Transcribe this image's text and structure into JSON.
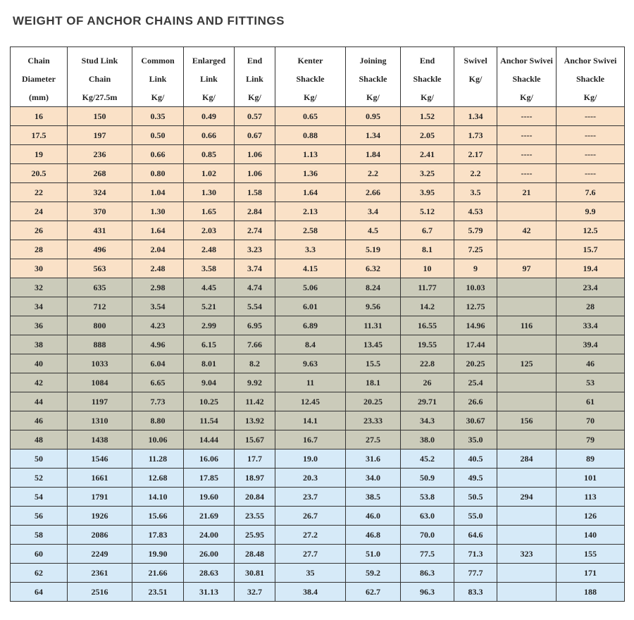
{
  "page": {
    "title": "WEIGHT OF ANCHOR CHAINS AND FITTINGS"
  },
  "table": {
    "columns": [
      {
        "id": "chain-diameter",
        "lines": [
          "Chain",
          "Diameter",
          "(mm)"
        ]
      },
      {
        "id": "stud-link-chain",
        "lines": [
          "Stud Link",
          "Chain",
          "Kg/27.5m"
        ]
      },
      {
        "id": "common-link",
        "lines": [
          "Common",
          "Link",
          "Kg/"
        ]
      },
      {
        "id": "enlarged-link",
        "lines": [
          "Enlarged",
          "Link",
          "Kg/"
        ]
      },
      {
        "id": "end-link",
        "lines": [
          "End",
          "Link",
          "Kg/"
        ]
      },
      {
        "id": "kenter-shackle",
        "lines": [
          "Kenter",
          "Shackle",
          "Kg/"
        ]
      },
      {
        "id": "joining-shackle",
        "lines": [
          "Joining",
          "Shackle",
          "Kg/"
        ]
      },
      {
        "id": "end-shackle",
        "lines": [
          "End",
          "Shackle",
          "Kg/"
        ]
      },
      {
        "id": "swivel",
        "lines": [
          "Swivel",
          "Kg/"
        ]
      },
      {
        "id": "anchor-swivei-shackle-1",
        "lines": [
          "Anchor Swivei",
          "Shackle",
          "Kg/"
        ]
      },
      {
        "id": "anchor-swivei-shackle-2",
        "lines": [
          "Anchor Swivei",
          "Shackle",
          "Kg/"
        ]
      }
    ],
    "band_colors": {
      "peach": "#FAE1C7",
      "gray": "#CBCBBA",
      "blue": "#D6EAF8"
    },
    "rows": [
      {
        "band": "peach",
        "cells": [
          "16",
          "150",
          "0.35",
          "0.49",
          "0.57",
          "0.65",
          "0.95",
          "1.52",
          "1.34",
          "----",
          "----"
        ]
      },
      {
        "band": "peach",
        "cells": [
          "17.5",
          "197",
          "0.50",
          "0.66",
          "0.67",
          "0.88",
          "1.34",
          "2.05",
          "1.73",
          "----",
          "----"
        ]
      },
      {
        "band": "peach",
        "cells": [
          "19",
          "236",
          "0.66",
          "0.85",
          "1.06",
          "1.13",
          "1.84",
          "2.41",
          "2.17",
          "----",
          "----"
        ]
      },
      {
        "band": "peach",
        "cells": [
          "20.5",
          "268",
          "0.80",
          "1.02",
          "1.06",
          "1.36",
          "2.2",
          "3.25",
          "2.2",
          "----",
          "----"
        ]
      },
      {
        "band": "peach",
        "cells": [
          "22",
          "324",
          "1.04",
          "1.30",
          "1.58",
          "1.64",
          "2.66",
          "3.95",
          "3.5",
          "21",
          "7.6"
        ]
      },
      {
        "band": "peach",
        "cells": [
          "24",
          "370",
          "1.30",
          "1.65",
          "2.84",
          "2.13",
          "3.4",
          "5.12",
          "4.53",
          "",
          "9.9"
        ]
      },
      {
        "band": "peach",
        "cells": [
          "26",
          "431",
          "1.64",
          "2.03",
          "2.74",
          "2.58",
          "4.5",
          "6.7",
          "5.79",
          "42",
          "12.5"
        ]
      },
      {
        "band": "peach",
        "cells": [
          "28",
          "496",
          "2.04",
          "2.48",
          "3.23",
          "3.3",
          "5.19",
          "8.1",
          "7.25",
          "",
          "15.7"
        ]
      },
      {
        "band": "peach",
        "cells": [
          "30",
          "563",
          "2.48",
          "3.58",
          "3.74",
          "4.15",
          "6.32",
          "10",
          "9",
          "97",
          "19.4"
        ]
      },
      {
        "band": "gray",
        "cells": [
          "32",
          "635",
          "2.98",
          "4.45",
          "4.74",
          "5.06",
          "8.24",
          "11.77",
          "10.03",
          "",
          "23.4"
        ]
      },
      {
        "band": "gray",
        "cells": [
          "34",
          "712",
          "3.54",
          "5.21",
          "5.54",
          "6.01",
          "9.56",
          "14.2",
          "12.75",
          "",
          "28"
        ]
      },
      {
        "band": "gray",
        "cells": [
          "36",
          "800",
          "4.23",
          "2.99",
          "6.95",
          "6.89",
          "11.31",
          "16.55",
          "14.96",
          "116",
          "33.4"
        ]
      },
      {
        "band": "gray",
        "cells": [
          "38",
          "888",
          "4.96",
          "6.15",
          "7.66",
          "8.4",
          "13.45",
          "19.55",
          "17.44",
          "",
          "39.4"
        ]
      },
      {
        "band": "gray",
        "cells": [
          "40",
          "1033",
          "6.04",
          "8.01",
          "8.2",
          "9.63",
          "15.5",
          "22.8",
          "20.25",
          "125",
          "46"
        ]
      },
      {
        "band": "gray",
        "cells": [
          "42",
          "1084",
          "6.65",
          "9.04",
          "9.92",
          "11",
          "18.1",
          "26",
          "25.4",
          "",
          "53"
        ]
      },
      {
        "band": "gray",
        "cells": [
          "44",
          "1197",
          "7.73",
          "10.25",
          "11.42",
          "12.45",
          "20.25",
          "29.71",
          "26.6",
          "",
          "61"
        ]
      },
      {
        "band": "gray",
        "cells": [
          "46",
          "1310",
          "8.80",
          "11.54",
          "13.92",
          "14.1",
          "23.33",
          "34.3",
          "30.67",
          "156",
          "70"
        ]
      },
      {
        "band": "gray",
        "cells": [
          "48",
          "1438",
          "10.06",
          "14.44",
          "15.67",
          "16.7",
          "27.5",
          "38.0",
          "35.0",
          "",
          "79"
        ]
      },
      {
        "band": "blue",
        "cells": [
          "50",
          "1546",
          "11.28",
          "16.06",
          "17.7",
          "19.0",
          "31.6",
          "45.2",
          "40.5",
          "284",
          "89"
        ]
      },
      {
        "band": "blue",
        "cells": [
          "52",
          "1661",
          "12.68",
          "17.85",
          "18.97",
          "20.3",
          "34.0",
          "50.9",
          "49.5",
          "",
          "101"
        ]
      },
      {
        "band": "blue",
        "cells": [
          "54",
          "1791",
          "14.10",
          "19.60",
          "20.84",
          "23.7",
          "38.5",
          "53.8",
          "50.5",
          "294",
          "113"
        ]
      },
      {
        "band": "blue",
        "cells": [
          "56",
          "1926",
          "15.66",
          "21.69",
          "23.55",
          "26.7",
          "46.0",
          "63.0",
          "55.0",
          "",
          "126"
        ]
      },
      {
        "band": "blue",
        "cells": [
          "58",
          "2086",
          "17.83",
          "24.00",
          "25.95",
          "27.2",
          "46.8",
          "70.0",
          "64.6",
          "",
          "140"
        ]
      },
      {
        "band": "blue",
        "cells": [
          "60",
          "2249",
          "19.90",
          "26.00",
          "28.48",
          "27.7",
          "51.0",
          "77.5",
          "71.3",
          "323",
          "155"
        ]
      },
      {
        "band": "blue",
        "cells": [
          "62",
          "2361",
          "21.66",
          "28.63",
          "30.81",
          "35",
          "59.2",
          "86.3",
          "77.7",
          "",
          "171"
        ]
      },
      {
        "band": "blue",
        "cells": [
          "64",
          "2516",
          "23.51",
          "31.13",
          "32.7",
          "38.4",
          "62.7",
          "96.3",
          "83.3",
          "",
          "188"
        ]
      }
    ]
  }
}
